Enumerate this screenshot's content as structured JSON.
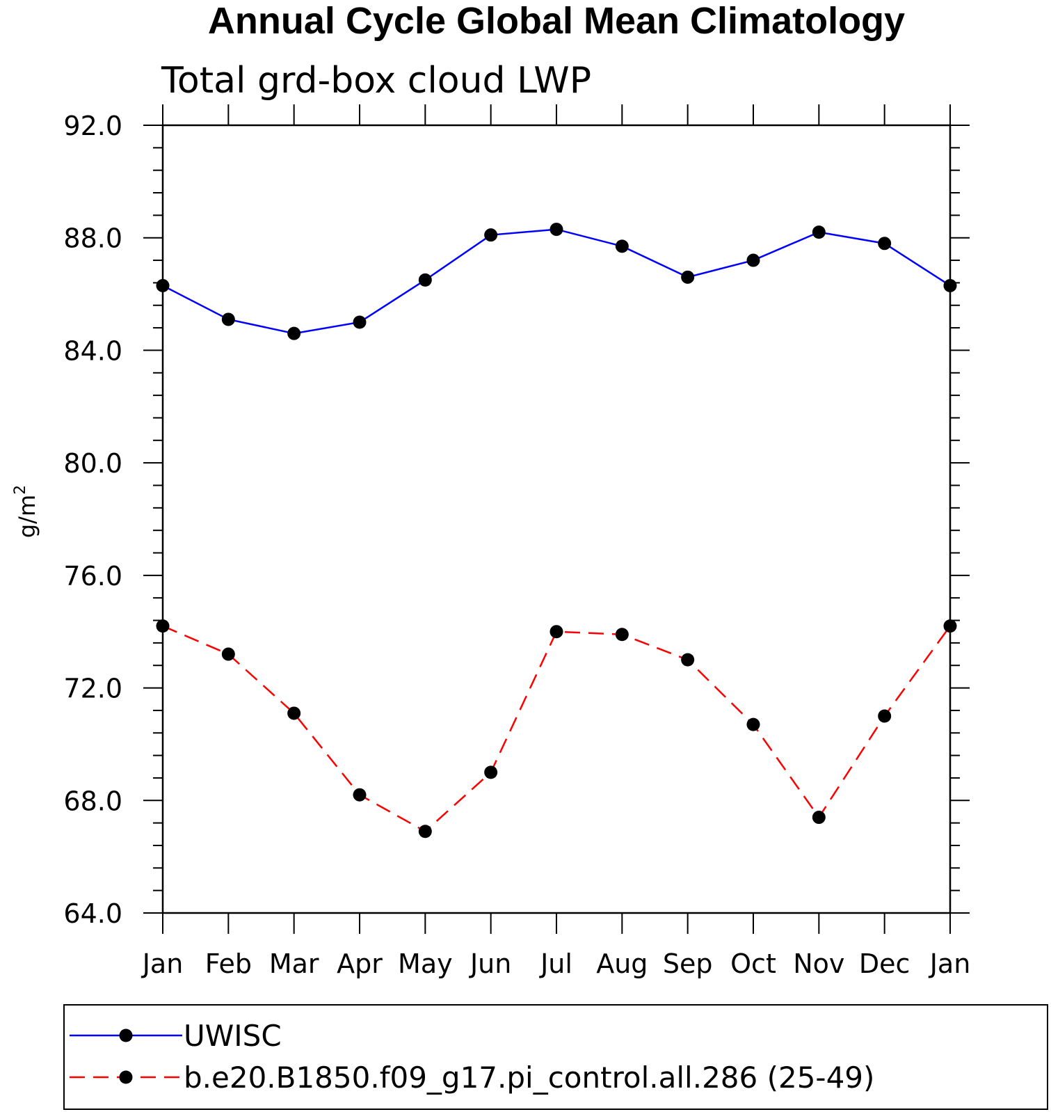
{
  "chart_data": {
    "type": "line",
    "title": "Annual Cycle Global Mean Climatology",
    "subtitle": "Total grd-box cloud LWP",
    "ylabel": "g/m",
    "ylabel_superscript": "2",
    "categories": [
      "Jan",
      "Feb",
      "Mar",
      "Apr",
      "May",
      "Jun",
      "Jul",
      "Aug",
      "Sep",
      "Oct",
      "Nov",
      "Dec",
      "Jan"
    ],
    "ylim": [
      64.0,
      92.0
    ],
    "yticks": [
      "64.0",
      "68.0",
      "72.0",
      "76.0",
      "80.0",
      "84.0",
      "88.0",
      "92.0"
    ],
    "ytick_values": [
      64,
      68,
      72,
      76,
      80,
      84,
      88,
      92
    ],
    "grid": false,
    "legend_position": "bottom",
    "series": [
      {
        "name": "UWISC",
        "color": "#0000ff",
        "line_style": "solid",
        "marker": "filled-circle",
        "values": [
          86.3,
          85.1,
          84.6,
          85.0,
          86.5,
          88.1,
          88.3,
          87.7,
          86.6,
          87.2,
          88.2,
          87.8,
          86.3
        ]
      },
      {
        "name": "b.e20.B1850.f09_g17.pi_control.all.286 (25-49)",
        "color": "#ff0000",
        "line_style": "dashed",
        "marker": "filled-circle",
        "values": [
          74.2,
          73.2,
          71.1,
          68.2,
          66.9,
          69.0,
          74.0,
          73.9,
          73.0,
          70.7,
          67.4,
          71.0,
          74.2
        ]
      }
    ]
  }
}
